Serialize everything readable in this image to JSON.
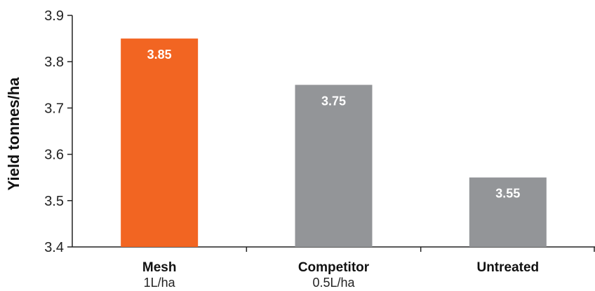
{
  "chart_data": {
    "type": "bar",
    "categories": [
      "Mesh",
      "Competitor",
      "Untreated"
    ],
    "category_sublabels": [
      "1L/ha",
      "0.5L/ha",
      ""
    ],
    "values": [
      3.85,
      3.75,
      3.55
    ],
    "data_labels": [
      "3.85",
      "3.75",
      "3.55"
    ],
    "bar_colors": [
      "#f26522",
      "#939598",
      "#939598"
    ],
    "title": "",
    "xlabel": "",
    "ylabel": "Yield tonnes/ha",
    "ylim": [
      3.4,
      3.9
    ],
    "yticks": [
      3.4,
      3.5,
      3.6,
      3.7,
      3.8,
      3.9
    ],
    "ytick_labels": [
      "3.4",
      "3.5",
      "3.6",
      "3.7",
      "3.8",
      "3.9"
    ],
    "grid": false,
    "legend": "none"
  }
}
